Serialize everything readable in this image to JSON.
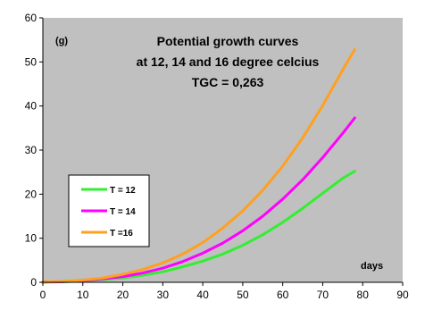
{
  "chart_data": {
    "type": "line",
    "title": "Potential growth curves",
    "subtitle": "at 12, 14 and 16 degree celcius",
    "subtitle2": "TGC = 0,263",
    "ylabel": "(g)",
    "xlabel": "days",
    "xlim": [
      0,
      90
    ],
    "ylim": [
      0,
      60
    ],
    "xticks": [
      "0",
      "10",
      "20",
      "30",
      "40",
      "50",
      "60",
      "70",
      "80",
      "90"
    ],
    "yticks": [
      "0",
      "10",
      "20",
      "30",
      "40",
      "50",
      "60"
    ],
    "grid": false,
    "legend_position": "left",
    "plot_background": "#c0c0c0",
    "series": [
      {
        "name": "T = 12",
        "color": "#33ee33",
        "points": [
          [
            0,
            0.05
          ],
          [
            5,
            0.1
          ],
          [
            10,
            0.3
          ],
          [
            15,
            0.6
          ],
          [
            20,
            1.0
          ],
          [
            25,
            1.6
          ],
          [
            30,
            2.4
          ],
          [
            35,
            3.5
          ],
          [
            40,
            4.8
          ],
          [
            45,
            6.4
          ],
          [
            50,
            8.4
          ],
          [
            55,
            10.8
          ],
          [
            60,
            13.6
          ],
          [
            65,
            16.8
          ],
          [
            70,
            20.2
          ],
          [
            75,
            23.6
          ],
          [
            78,
            25.2
          ]
        ]
      },
      {
        "name": "T = 14",
        "color": "#ff00ff",
        "points": [
          [
            0,
            0.05
          ],
          [
            5,
            0.15
          ],
          [
            10,
            0.4
          ],
          [
            15,
            0.8
          ],
          [
            20,
            1.3
          ],
          [
            25,
            2.1
          ],
          [
            30,
            3.2
          ],
          [
            35,
            4.7
          ],
          [
            40,
            6.6
          ],
          [
            45,
            8.9
          ],
          [
            50,
            11.7
          ],
          [
            55,
            15.0
          ],
          [
            60,
            18.9
          ],
          [
            65,
            23.3
          ],
          [
            70,
            28.3
          ],
          [
            75,
            33.8
          ],
          [
            78,
            37.3
          ]
        ]
      },
      {
        "name": "T =16",
        "color": "#ffa020",
        "points": [
          [
            0,
            0.05
          ],
          [
            5,
            0.2
          ],
          [
            10,
            0.5
          ],
          [
            15,
            1.0
          ],
          [
            20,
            1.8
          ],
          [
            25,
            2.9
          ],
          [
            30,
            4.4
          ],
          [
            35,
            6.4
          ],
          [
            40,
            9.0
          ],
          [
            45,
            12.3
          ],
          [
            50,
            16.2
          ],
          [
            55,
            20.9
          ],
          [
            60,
            26.4
          ],
          [
            65,
            32.8
          ],
          [
            70,
            40.1
          ],
          [
            75,
            48.2
          ],
          [
            78,
            52.8
          ]
        ]
      }
    ]
  }
}
